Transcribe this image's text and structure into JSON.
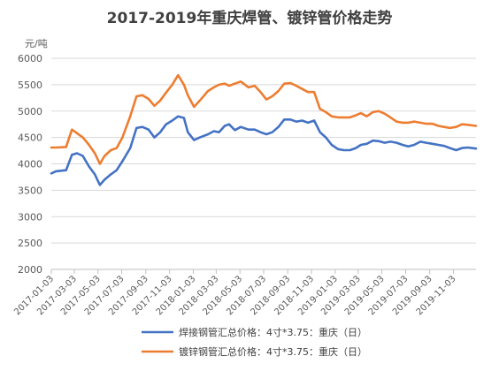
{
  "chart_data": {
    "type": "line",
    "title": "2017-2019年重庆焊管、镀锌管价格走势",
    "unit_label": "元/吨",
    "ylim": [
      2000,
      6000
    ],
    "y_ticks": [
      "6000",
      "5500",
      "5000",
      "4500",
      "4000",
      "3500",
      "3000",
      "2500",
      "2000"
    ],
    "x_tick_labels": [
      "2017-01-03",
      "2017-03-03",
      "2017-05-03",
      "2017-07-03",
      "2017-09-03",
      "2017-11-03",
      "2018-01-03",
      "2018-03-03",
      "2018-05-03",
      "2018-07-03",
      "2018-09-03",
      "2018-11-03",
      "2019-01-03",
      "2019-03-03",
      "2019-05-03",
      "2019-07-03",
      "2019-09-03",
      "2019-11-03"
    ],
    "grid": "horizontal",
    "legend_position": "bottom",
    "series": [
      {
        "name": "焊接钢管汇总价格：4寸*3.75：重庆（日）",
        "color": "#4472c4",
        "points": [
          [
            "2017-01-03",
            3820
          ],
          [
            "2017-01-15",
            3860
          ],
          [
            "2017-02-10",
            3880
          ],
          [
            "2017-02-25",
            4170
          ],
          [
            "2017-03-10",
            4200
          ],
          [
            "2017-03-25",
            4150
          ],
          [
            "2017-04-10",
            3950
          ],
          [
            "2017-04-25",
            3800
          ],
          [
            "2017-05-08",
            3600
          ],
          [
            "2017-05-20",
            3700
          ],
          [
            "2017-06-05",
            3800
          ],
          [
            "2017-06-20",
            3880
          ],
          [
            "2017-07-05",
            4050
          ],
          [
            "2017-07-25",
            4300
          ],
          [
            "2017-08-10",
            4680
          ],
          [
            "2017-08-25",
            4700
          ],
          [
            "2017-09-10",
            4650
          ],
          [
            "2017-09-25",
            4500
          ],
          [
            "2017-10-10",
            4600
          ],
          [
            "2017-10-25",
            4750
          ],
          [
            "2017-11-10",
            4820
          ],
          [
            "2017-11-25",
            4900
          ],
          [
            "2017-12-10",
            4870
          ],
          [
            "2017-12-20",
            4600
          ],
          [
            "2018-01-05",
            4450
          ],
          [
            "2018-01-20",
            4500
          ],
          [
            "2018-02-10",
            4560
          ],
          [
            "2018-02-25",
            4620
          ],
          [
            "2018-03-10",
            4600
          ],
          [
            "2018-03-25",
            4720
          ],
          [
            "2018-04-05",
            4750
          ],
          [
            "2018-04-20",
            4640
          ],
          [
            "2018-05-05",
            4700
          ],
          [
            "2018-05-25",
            4650
          ],
          [
            "2018-06-10",
            4650
          ],
          [
            "2018-06-25",
            4600
          ],
          [
            "2018-07-10",
            4560
          ],
          [
            "2018-07-25",
            4600
          ],
          [
            "2018-08-10",
            4700
          ],
          [
            "2018-08-25",
            4840
          ],
          [
            "2018-09-10",
            4840
          ],
          [
            "2018-09-25",
            4800
          ],
          [
            "2018-10-10",
            4820
          ],
          [
            "2018-10-25",
            4780
          ],
          [
            "2018-11-10",
            4820
          ],
          [
            "2018-11-25",
            4600
          ],
          [
            "2018-12-10",
            4500
          ],
          [
            "2018-12-25",
            4360
          ],
          [
            "2019-01-10",
            4280
          ],
          [
            "2019-01-25",
            4260
          ],
          [
            "2019-02-10",
            4260
          ],
          [
            "2019-02-25",
            4300
          ],
          [
            "2019-03-10",
            4360
          ],
          [
            "2019-03-25",
            4380
          ],
          [
            "2019-04-10",
            4440
          ],
          [
            "2019-04-25",
            4430
          ],
          [
            "2019-05-10",
            4400
          ],
          [
            "2019-05-25",
            4420
          ],
          [
            "2019-06-10",
            4400
          ],
          [
            "2019-06-25",
            4360
          ],
          [
            "2019-07-10",
            4330
          ],
          [
            "2019-07-25",
            4360
          ],
          [
            "2019-08-10",
            4420
          ],
          [
            "2019-08-25",
            4400
          ],
          [
            "2019-09-10",
            4380
          ],
          [
            "2019-09-25",
            4360
          ],
          [
            "2019-10-10",
            4340
          ],
          [
            "2019-10-25",
            4300
          ],
          [
            "2019-11-10",
            4260
          ],
          [
            "2019-11-25",
            4300
          ],
          [
            "2019-12-10",
            4310
          ],
          [
            "2019-12-31",
            4290
          ]
        ]
      },
      {
        "name": "镀锌钢管汇总价格：4寸*3.75：重庆（日）",
        "color": "#ed7d31",
        "points": [
          [
            "2017-01-03",
            4310
          ],
          [
            "2017-01-15",
            4310
          ],
          [
            "2017-02-10",
            4320
          ],
          [
            "2017-02-25",
            4650
          ],
          [
            "2017-03-10",
            4580
          ],
          [
            "2017-03-25",
            4500
          ],
          [
            "2017-04-10",
            4360
          ],
          [
            "2017-04-25",
            4200
          ],
          [
            "2017-05-08",
            4000
          ],
          [
            "2017-05-20",
            4150
          ],
          [
            "2017-06-05",
            4260
          ],
          [
            "2017-06-20",
            4300
          ],
          [
            "2017-07-05",
            4500
          ],
          [
            "2017-07-25",
            4900
          ],
          [
            "2017-08-10",
            5280
          ],
          [
            "2017-08-25",
            5300
          ],
          [
            "2017-09-10",
            5230
          ],
          [
            "2017-09-25",
            5100
          ],
          [
            "2017-10-10",
            5200
          ],
          [
            "2017-10-25",
            5350
          ],
          [
            "2017-11-10",
            5500
          ],
          [
            "2017-11-25",
            5680
          ],
          [
            "2017-12-10",
            5500
          ],
          [
            "2017-12-20",
            5300
          ],
          [
            "2018-01-05",
            5080
          ],
          [
            "2018-01-20",
            5200
          ],
          [
            "2018-02-10",
            5380
          ],
          [
            "2018-02-25",
            5450
          ],
          [
            "2018-03-10",
            5500
          ],
          [
            "2018-03-25",
            5520
          ],
          [
            "2018-04-05",
            5480
          ],
          [
            "2018-04-20",
            5520
          ],
          [
            "2018-05-05",
            5560
          ],
          [
            "2018-05-25",
            5450
          ],
          [
            "2018-06-10",
            5480
          ],
          [
            "2018-06-25",
            5360
          ],
          [
            "2018-07-10",
            5220
          ],
          [
            "2018-07-25",
            5280
          ],
          [
            "2018-08-10",
            5380
          ],
          [
            "2018-08-25",
            5520
          ],
          [
            "2018-09-10",
            5530
          ],
          [
            "2018-09-25",
            5480
          ],
          [
            "2018-10-10",
            5420
          ],
          [
            "2018-10-25",
            5360
          ],
          [
            "2018-11-10",
            5360
          ],
          [
            "2018-11-25",
            5040
          ],
          [
            "2018-12-10",
            4980
          ],
          [
            "2018-12-25",
            4900
          ],
          [
            "2019-01-10",
            4880
          ],
          [
            "2019-01-25",
            4880
          ],
          [
            "2019-02-10",
            4880
          ],
          [
            "2019-02-25",
            4920
          ],
          [
            "2019-03-10",
            4960
          ],
          [
            "2019-03-25",
            4900
          ],
          [
            "2019-04-10",
            4980
          ],
          [
            "2019-04-25",
            5000
          ],
          [
            "2019-05-10",
            4950
          ],
          [
            "2019-05-25",
            4880
          ],
          [
            "2019-06-10",
            4800
          ],
          [
            "2019-06-25",
            4780
          ],
          [
            "2019-07-10",
            4780
          ],
          [
            "2019-07-25",
            4800
          ],
          [
            "2019-08-10",
            4780
          ],
          [
            "2019-08-25",
            4760
          ],
          [
            "2019-09-10",
            4760
          ],
          [
            "2019-09-25",
            4720
          ],
          [
            "2019-10-10",
            4700
          ],
          [
            "2019-10-25",
            4680
          ],
          [
            "2019-11-10",
            4700
          ],
          [
            "2019-11-25",
            4750
          ],
          [
            "2019-12-10",
            4740
          ],
          [
            "2019-12-31",
            4720
          ]
        ]
      }
    ]
  }
}
